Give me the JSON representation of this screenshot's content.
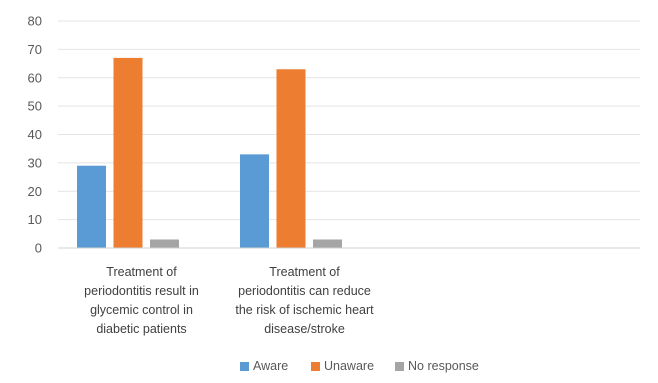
{
  "chart_data": {
    "type": "bar",
    "categories": [
      [
        "Treatment of",
        "periodontitis result in",
        "glycemic control in",
        "diabetic patients"
      ],
      [
        "Treatment of",
        "periodontitis can reduce",
        "the risk of ischemic heart",
        "disease/stroke"
      ]
    ],
    "series": [
      {
        "name": "Aware",
        "color": "#5b9bd5",
        "values": [
          29,
          33
        ]
      },
      {
        "name": "Unaware",
        "color": "#ed7d31",
        "values": [
          67,
          63
        ]
      },
      {
        "name": "No response",
        "color": "#a5a5a5",
        "values": [
          3,
          3
        ]
      }
    ],
    "ylim": [
      0,
      80
    ],
    "yticks": [
      0,
      10,
      20,
      30,
      40,
      50,
      60,
      70,
      80
    ],
    "grid": true,
    "legend": "bottom-center",
    "title": "",
    "xlabel": "",
    "ylabel": ""
  }
}
